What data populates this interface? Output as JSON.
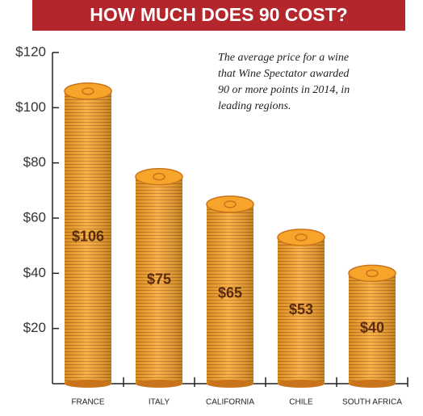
{
  "chart_data": {
    "type": "bar",
    "title": "HOW MUCH DOES 90 COST?",
    "annotation": [
      "The average price for a wine",
      "that Wine Spectator awarded",
      "90 or more points in 2014, in",
      "leading regions."
    ],
    "categories": [
      "FRANCE",
      "ITALY",
      "CALIFORNIA",
      "CHILE",
      "SOUTH AFRICA"
    ],
    "values": [
      106,
      75,
      65,
      53,
      40
    ],
    "value_labels": [
      "$106",
      "$75",
      "$65",
      "$53",
      "$40"
    ],
    "color": "#f7a52a",
    "ylim": [
      0,
      120
    ],
    "yticks": [
      {
        "value": 20,
        "label": "$20"
      },
      {
        "value": 40,
        "label": "$40"
      },
      {
        "value": 60,
        "label": "$60"
      },
      {
        "value": 80,
        "label": "$80"
      },
      {
        "value": 100,
        "label": "$100"
      },
      {
        "value": 120,
        "label": "$120"
      }
    ],
    "grid": false
  }
}
